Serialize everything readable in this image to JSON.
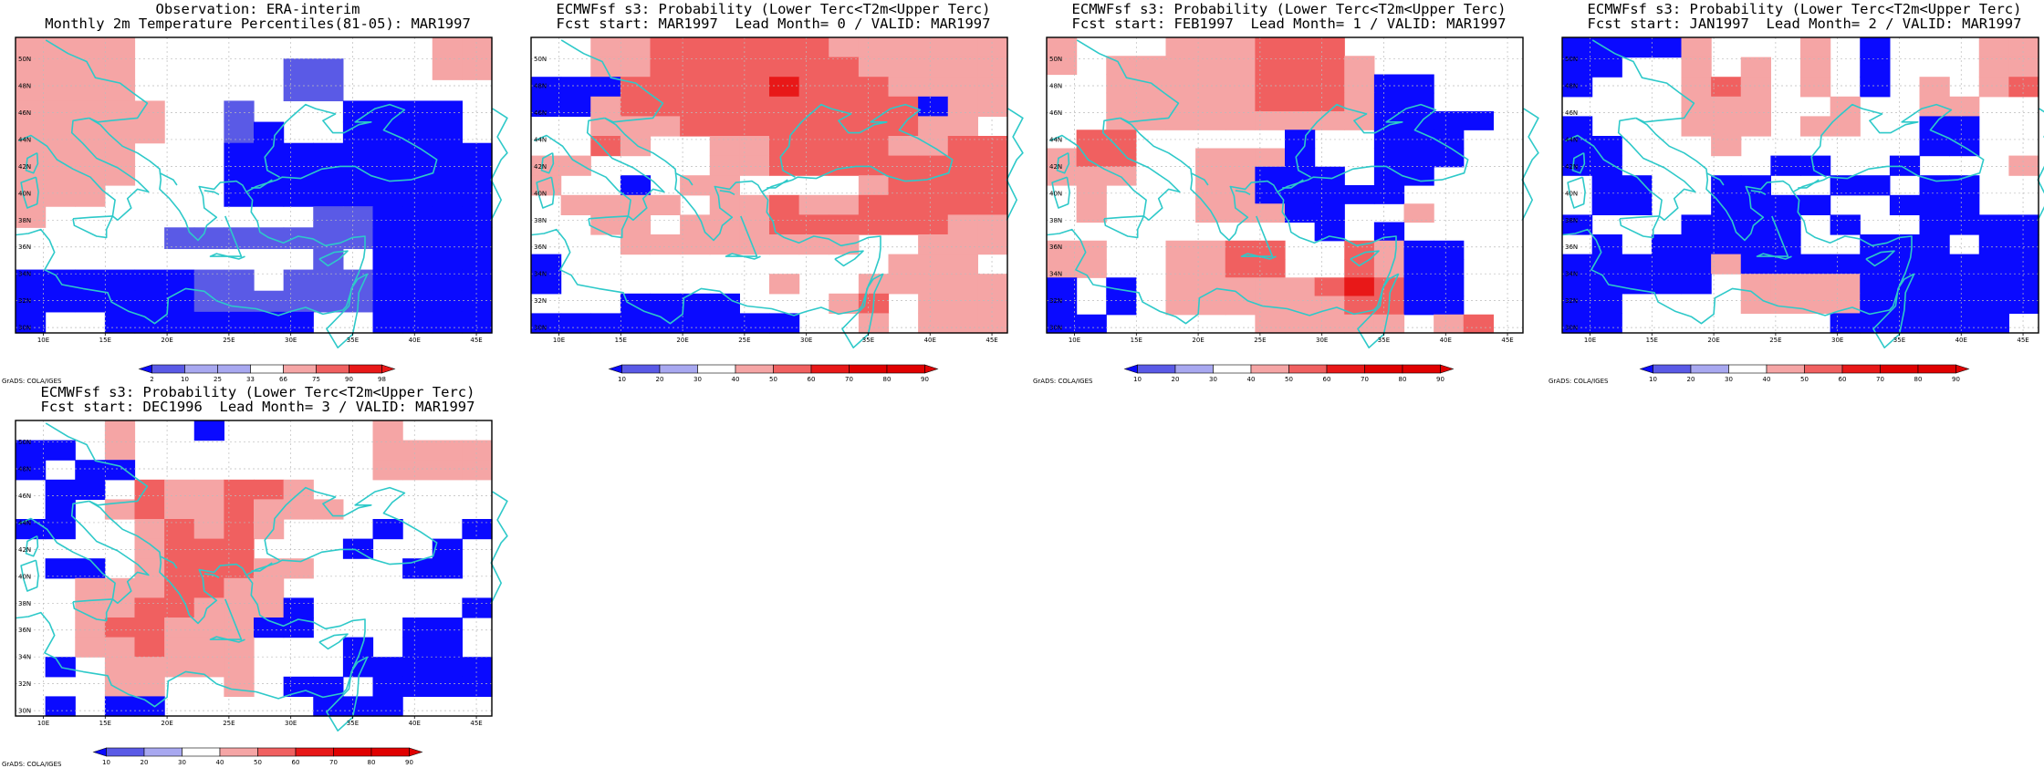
{
  "colors": {
    "coastline": "#2ec9c9",
    "grid": "#bbbbbb",
    "blue3": "#0a0aff",
    "blue2": "#5a5ae6",
    "blue1": "#a8a8f0",
    "white": "#ffffff",
    "red1": "#f5a5a5",
    "red2": "#f06060",
    "red3": "#e81818",
    "red4": "#e00000"
  },
  "map_axes": {
    "lon_labels": [
      "10E",
      "15E",
      "20E",
      "25E",
      "30E",
      "35E",
      "40E",
      "45E"
    ],
    "lat_labels": [
      "50N",
      "48N",
      "46N",
      "44N",
      "42N",
      "40N",
      "38N",
      "36N",
      "34N",
      "32N",
      "30N"
    ]
  },
  "credit": "GrADS: COLA/IGES",
  "panels": [
    {
      "id": "obs",
      "title1": "Observation: ERA-interim",
      "title2": "Monthly 2m Temperature Percentiles(81-05): MAR1997",
      "legend_labels": [
        "2",
        "10",
        "25",
        "33",
        "66",
        "75",
        "90",
        "98"
      ],
      "legend_colors": [
        "blue3",
        "blue2",
        "blue1",
        "blue1",
        "white",
        "red1",
        "red2",
        "red3",
        "red3"
      ],
      "cells": [
        "rrrr..........rr",
        "rrrr.....bb...rr",
        "rrrr.....bb.....",
        "rrrrr..b...BBBB.",
        "rrrrr..bB..BBBB.",
        "rrrr...BBBBBBBBB",
        "rrrr...BBBBBBBBB",
        "rrr....BBBBBBBBB",
        "r.........bbBBBB",
        ".....bbbbbbbBBBB",
        "..........b.BBBB",
        "BBBBBBbb.bbbBBBB",
        "BBBBBBbbbbbbBBBB",
        "B..BBBBBBB..BBBB"
      ]
    },
    {
      "id": "lead0",
      "title1": "ECMWFsf s3: Probability (Lower Terc<T2m<Upper Terc)",
      "title2": "Fcst start: MAR1997  Lead Month= 0 / VALID: MAR1997",
      "legend_labels": [
        "10",
        "20",
        "30",
        "40",
        "50",
        "60",
        "70",
        "80",
        "90"
      ],
      "legend_colors": [
        "blue3",
        "blue2",
        "blue1",
        "white",
        "red1",
        "red2",
        "red3",
        "red4",
        "red4",
        "red4"
      ],
      "cells": [
        "..rrRRRRRRrrrrrr",
        "..rrRRRRRRRrrrrr",
        "BBBRRRRR3RRRrrrr",
        "BBrRRRRRRRRRRBrr",
        "..rrrRRRRRRRRrr.",
        "..Rr..rrRRRRrrRR",
        "rr....rrRRRRRRRR",
        "r..B.rr....rRRRR",
        ".rrrr.rrRrrRRRRR",
        "..rr.rrrRRRRRRrr",
        "...rrrrrrrr..rrr",
        "B...........rrr.",
        "B.......r..rrrrr",
        "...BBBB...rR.rrr",
        "BBBBBBBBB..r.rrr"
      ]
    },
    {
      "id": "lead1",
      "title1": "ECMWFsf s3: Probability (Lower Terc<T2m<Upper Terc)",
      "title2": "Fcst start: FEB1997  Lead Month= 1 / VALID: MAR1997",
      "legend_labels": [
        "10",
        "20",
        "30",
        "40",
        "50",
        "60",
        "70",
        "80",
        "90"
      ],
      "legend_colors": [
        "blue3",
        "blue2",
        "blue1",
        "white",
        "red1",
        "red2",
        "red3",
        "red4",
        "red4",
        "red4"
      ],
      "cells": [
        "r...rrrRRR......",
        "r.rrrrrRRRr.....",
        "..rrrrrRRRrBB...",
        "..rrrrrRRRrBB...",
        "..rrrrrrrrrBBBB.",
        ".RR.....B..BBB..",
        "rRR..rrrB..BBB..",
        "rrr..rrBBB.BB...",
        ".r...rrBBBBB....",
        ".r...rrrBB..r...",
        ".........B.B....",
        "rr..rrRR..RrBB..",
        "rr..rrRR..RrBB..",
        "B.B.rrrrrR3RBB..",
        "B.B.rrrrrrRRBB..",
        "BB.....rrrrr.rR."
      ]
    },
    {
      "id": "lead2",
      "title1": "ECMWFsf s3: Probability (Lower Terc<T2m<Upper Terc)",
      "title2": "Fcst start: JAN1997  Lead Month= 2 / VALID: MAR1997",
      "legend_labels": [
        "10",
        "20",
        "30",
        "40",
        "50",
        "60",
        "70",
        "80",
        "90"
      ],
      "legend_colors": [
        "blue3",
        "blue2",
        "blue1",
        "white",
        "red1",
        "red2",
        "red3",
        "red4",
        "red4",
        "red4"
      ],
      "cells": [
        "BBBBr...r.B...rr",
        "BB..r.r.r.B...rr",
        "B...rRr.r.B.r.rR",
        "....rrr..r..rr..",
        "B...rrr.rr..BB..",
        "BB...r......BB..",
        "BB.....BB..B...r",
        ".BB..BB..BB.BB..",
        ".BB..BBBB..BBB..",
        "B...BBBB.B..BBBB",
        ".B.BBBBB..BBB.BB",
        "BBBBBrBBBBBBBBBB",
        "BBBBB.rrrrBBBBBB",
        "BB....rrrrBBBBBB",
        "BB.......BBBBBB."
      ]
    },
    {
      "id": "lead3",
      "title1": "ECMWFsf s3: Probability (Lower Terc<T2m<Upper Terc)",
      "title2": "Fcst start: DEC1996  Lead Month= 3 / VALID: MAR1997",
      "legend_labels": [
        "10",
        "20",
        "30",
        "40",
        "50",
        "60",
        "70",
        "80",
        "90"
      ],
      "legend_colors": [
        "blue3",
        "blue2",
        "blue1",
        "white",
        "red1",
        "red2",
        "red3",
        "red4",
        "red4",
        "red4"
      ],
      "cells": [
        "...r..B.....r...",
        "BB.r........rrrr",
        "B.BB........rrrr",
        ".BB.RrrRRr......",
        ".B.rRrrRrrr.....",
        "BB..rRrRr...B..B",
        "....rRRR...B..B.",
        ".BB.rRRRrr...BB.",
        "..rrrRRrr.......",
        "..rrRRrrrB.....B",
        "..rRRrrrBB...BB.",
        "..rrRrrr...B.BB.",
        ".B.rrrrr...BBBBB",
        "...rr..r.BB.BBBB",
        ".B.BB.....BBB..."
      ]
    }
  ]
}
